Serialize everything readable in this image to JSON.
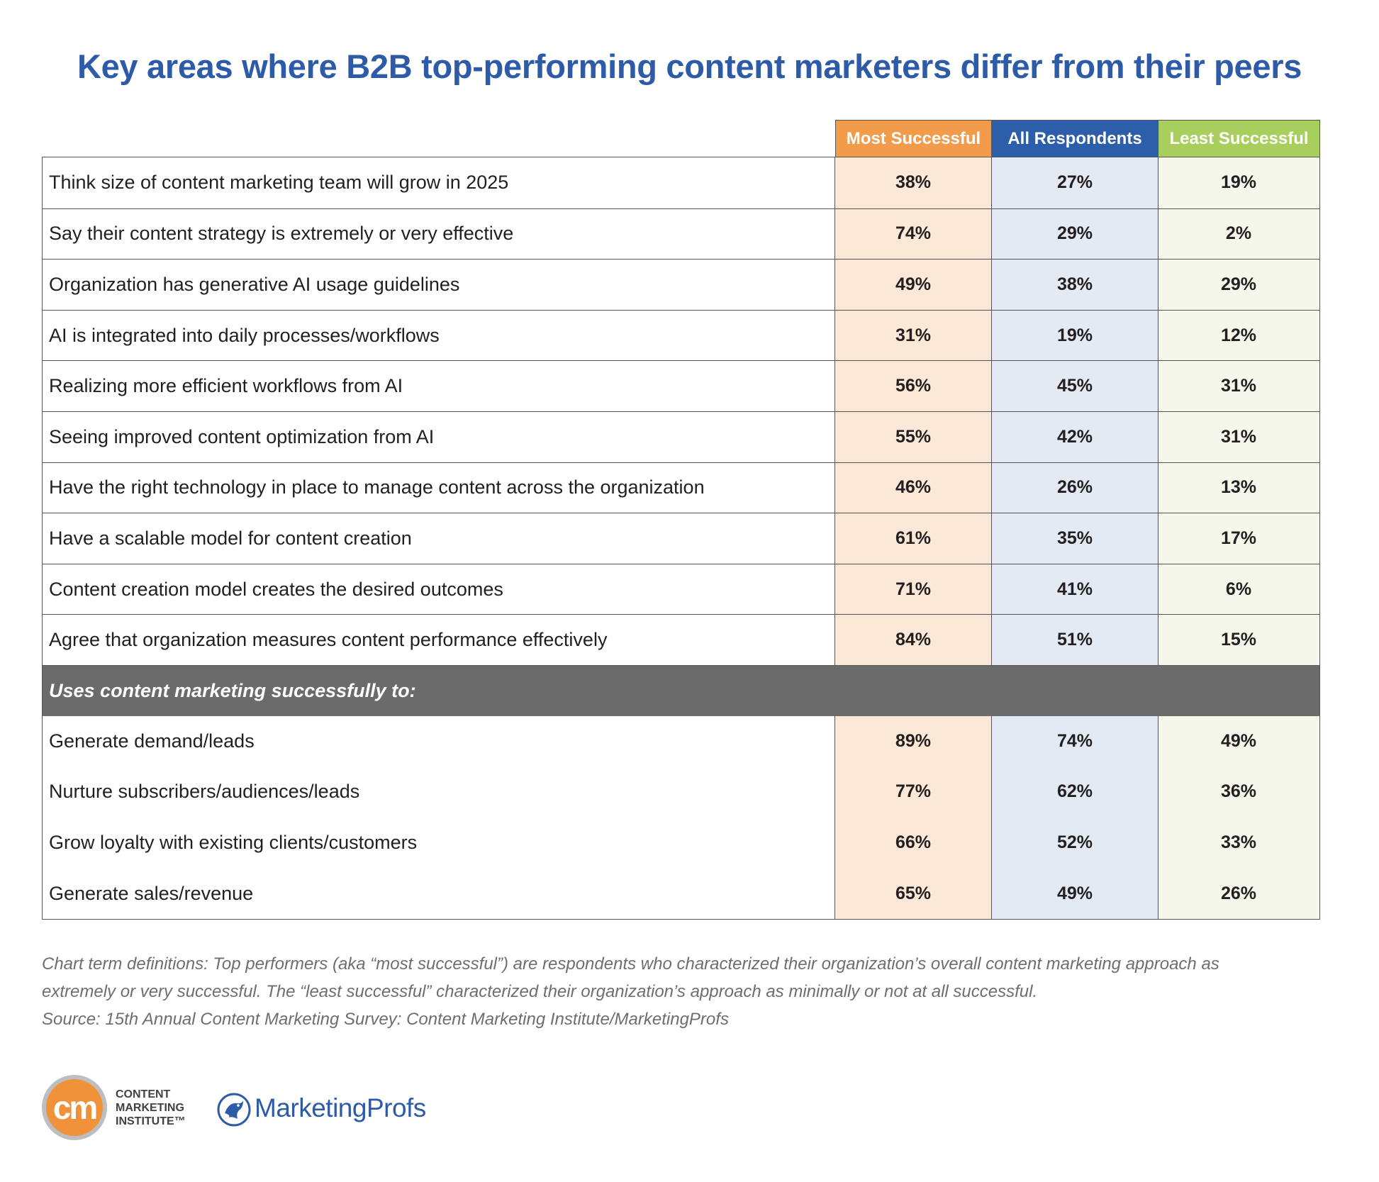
{
  "title": "Key areas where B2B top-performing content marketers differ from their peers",
  "columns": [
    "Most Successful",
    "All Respondents",
    "Least Successful"
  ],
  "colors": {
    "title": "#2e5ba8",
    "most_successful": "#f29b4b",
    "all_respondents": "#2d5ea9",
    "least_successful": "#a8cf5e",
    "section_band": "#6b6b6b"
  },
  "chart_data": {
    "type": "table",
    "title": "Key areas where B2B top-performing content marketers differ from their peers",
    "columns": [
      "Most Successful",
      "All Respondents",
      "Least Successful"
    ],
    "rows": [
      {
        "label": "Think size of content marketing team will grow in 2025",
        "values": [
          "38%",
          "27%",
          "19%"
        ]
      },
      {
        "label": "Say their content strategy is extremely or very effective",
        "values": [
          "74%",
          "29%",
          "2%"
        ]
      },
      {
        "label": "Organization has generative AI usage guidelines",
        "values": [
          "49%",
          "38%",
          "29%"
        ]
      },
      {
        "label": "AI is integrated into daily processes/workflows",
        "values": [
          "31%",
          "19%",
          "12%"
        ]
      },
      {
        "label": "Realizing more efficient workflows from AI",
        "values": [
          "56%",
          "45%",
          "31%"
        ]
      },
      {
        "label": "Seeing improved content optimization from AI",
        "values": [
          "55%",
          "42%",
          "31%"
        ]
      },
      {
        "label": "Have the right technology in place to manage content across the organization",
        "values": [
          "46%",
          "26%",
          "13%"
        ]
      },
      {
        "label": "Have a scalable model for content creation",
        "values": [
          "61%",
          "35%",
          "17%"
        ]
      },
      {
        "label": "Content creation model creates the desired outcomes",
        "values": [
          "71%",
          "41%",
          "6%"
        ]
      },
      {
        "label": "Agree that organization measures content performance effectively",
        "values": [
          "84%",
          "51%",
          "15%"
        ]
      }
    ],
    "section": {
      "label": "Uses content marketing successfully to:",
      "rows": [
        {
          "label": "Generate demand/leads",
          "values": [
            "89%",
            "74%",
            "49%"
          ]
        },
        {
          "label": "Nurture subscribers/audiences/leads",
          "values": [
            "77%",
            "62%",
            "36%"
          ]
        },
        {
          "label": "Grow loyalty with existing clients/customers",
          "values": [
            "66%",
            "52%",
            "33%"
          ]
        },
        {
          "label": "Generate sales/revenue",
          "values": [
            "65%",
            "49%",
            "26%"
          ]
        }
      ]
    }
  },
  "notes": {
    "line1": "Chart term definitions: Top performers (aka “most successful”) are respondents who characterized their organization’s overall content marketing approach as",
    "line2": "extremely or very successful. The “least successful” characterized their organization’s approach as minimally or not at all successful.",
    "source": "Source: 15th Annual Content Marketing Survey: Content Marketing Institute/MarketingProfs"
  },
  "logos": {
    "cmi_mark": "cm",
    "cmi_text": [
      "CONTENT",
      "MARKETING",
      "INSTITUTE™"
    ],
    "mp_text": "MarketingProfs",
    "mp_icon": "marketingprofs-bird-icon"
  }
}
